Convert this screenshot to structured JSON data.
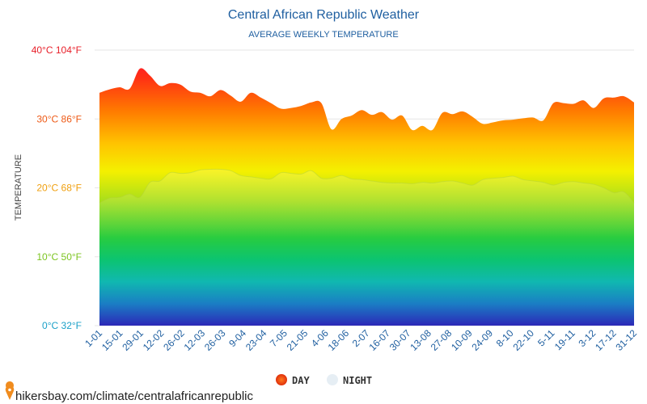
{
  "chart_data": {
    "type": "area",
    "title": "Central African Republic Weather",
    "subtitle": "AVERAGE WEEKLY TEMPERATURE",
    "ylabel": "TEMPERATURE",
    "ylim": [
      0,
      40
    ],
    "y_ticks": [
      {
        "value": 40,
        "label": "40°C 104°F",
        "color": "#e8202a"
      },
      {
        "value": 30,
        "label": "30°C 86°F",
        "color": "#ee5a16"
      },
      {
        "value": 20,
        "label": "20°C 68°F",
        "color": "#f0a010"
      },
      {
        "value": 10,
        "label": "10°C 50°F",
        "color": "#7cc420"
      },
      {
        "value": 0,
        "label": "0°C 32°F",
        "color": "#1aa0c8"
      }
    ],
    "x_labels": [
      "1-01",
      "15-01",
      "29-01",
      "12-02",
      "26-02",
      "12-03",
      "26-03",
      "9-04",
      "23-04",
      "7-05",
      "21-05",
      "4-06",
      "18-06",
      "2-07",
      "16-07",
      "30-07",
      "13-08",
      "27-08",
      "10-09",
      "24-09",
      "8-10",
      "22-10",
      "5-11",
      "19-11",
      "3-12",
      "17-12",
      "31-12"
    ],
    "series": [
      {
        "name": "DAY",
        "color": "#f0501e",
        "values": [
          33.8,
          34.3,
          34.6,
          34.4,
          37.3,
          36.3,
          34.8,
          35.2,
          35.0,
          34.0,
          33.8,
          33.3,
          34.2,
          33.4,
          32.5,
          33.8,
          33.1,
          32.3,
          31.5,
          31.6,
          31.9,
          32.4,
          32.3,
          28.5,
          30.0,
          30.5,
          31.3,
          30.6,
          31.0,
          29.9,
          30.5,
          28.4,
          29.0,
          28.4,
          30.9,
          30.7,
          31.1,
          30.3,
          29.3,
          29.5,
          29.8,
          29.9,
          30.1,
          30.2,
          29.8,
          32.3,
          32.3,
          32.2,
          32.7,
          31.6,
          33.0,
          33.1,
          33.3,
          32.4
        ]
      },
      {
        "name": "NIGHT",
        "color": "#e6eef4",
        "values": [
          17.8,
          18.5,
          18.6,
          19.1,
          18.6,
          20.8,
          21.0,
          22.2,
          22.1,
          22.2,
          22.6,
          22.7,
          22.7,
          22.5,
          21.8,
          21.6,
          21.4,
          21.3,
          22.2,
          22.1,
          22.0,
          22.5,
          21.4,
          21.4,
          21.8,
          21.3,
          21.2,
          21.0,
          20.8,
          20.7,
          20.7,
          20.6,
          20.8,
          20.7,
          20.9,
          21.0,
          20.7,
          20.4,
          21.2,
          21.4,
          21.5,
          21.7,
          21.2,
          21.0,
          20.8,
          20.4,
          20.8,
          20.9,
          20.7,
          20.5,
          20.0,
          19.3,
          19.4,
          17.8
        ]
      }
    ],
    "legend": [
      {
        "label": "DAY",
        "color": "#f0501e"
      },
      {
        "label": "NIGHT",
        "color": "#e6eef4"
      }
    ]
  },
  "footer": {
    "url": "hikersbay.com/climate/centralafricanrepublic",
    "pin_icon": "location-pin-icon"
  }
}
